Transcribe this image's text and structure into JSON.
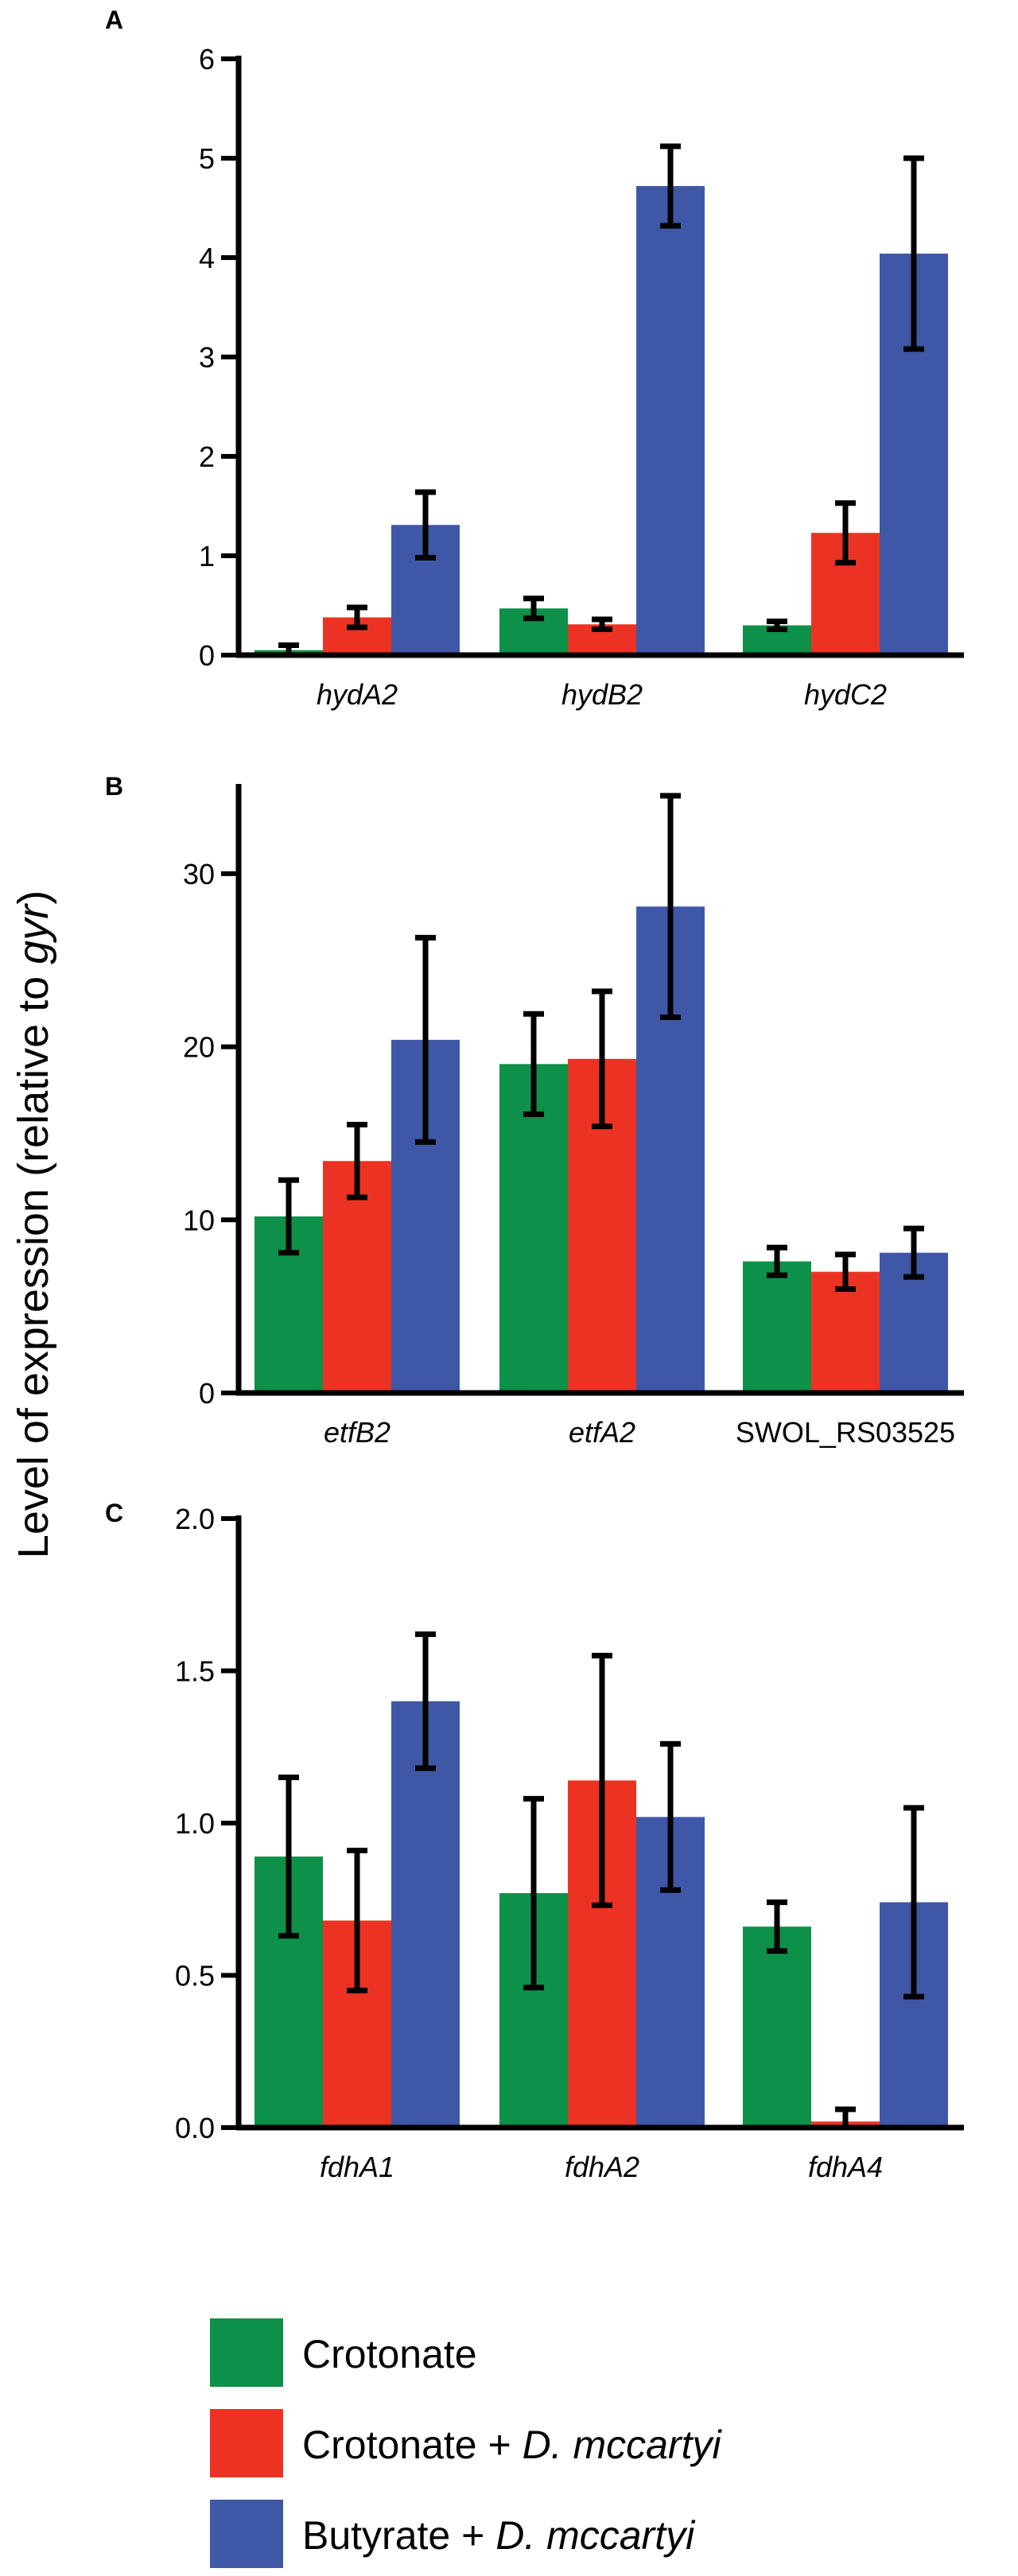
{
  "figure": {
    "ylabel_prefix": "Level of expression (relative to ",
    "ylabel_italic": "gyr",
    "ylabel_suffix": ")"
  },
  "legend": [
    {
      "label_plain": "Crotonate",
      "label_italic": "",
      "color": "#0d9048"
    },
    {
      "label_plain": "Crotonate + ",
      "label_italic": "D. mccartyi",
      "color": "#ec3323"
    },
    {
      "label_plain": "Butyrate + ",
      "label_italic": "D. mccartyi",
      "color": "#3f57a7"
    }
  ],
  "chart_data": [
    {
      "panel": "A",
      "type": "bar",
      "categories": [
        "hydA2",
        "hydB2",
        "hydC2"
      ],
      "categories_italic": [
        true,
        true,
        true
      ],
      "ylim": [
        0,
        6
      ],
      "yticks": [
        0,
        1,
        2,
        3,
        4,
        5,
        6
      ],
      "ytick_labels": [
        "0",
        "1",
        "2",
        "3",
        "4",
        "5",
        "6"
      ],
      "series": [
        {
          "name": "Crotonate",
          "values": [
            0.05,
            0.47,
            0.3
          ],
          "errors": [
            0.05,
            0.1,
            0.04
          ]
        },
        {
          "name": "Crotonate + D. mccartyi",
          "values": [
            0.38,
            0.31,
            1.23
          ],
          "errors": [
            0.1,
            0.05,
            0.3
          ]
        },
        {
          "name": "Butyrate + D. mccartyi",
          "values": [
            1.31,
            4.72,
            4.04
          ],
          "errors": [
            0.33,
            0.4,
            0.96
          ]
        }
      ]
    },
    {
      "panel": "B",
      "type": "bar",
      "categories": [
        "etfB2",
        "etfA2",
        "SWOL_RS03525"
      ],
      "categories_italic": [
        true,
        true,
        false
      ],
      "ylim": [
        0,
        35
      ],
      "yticks": [
        0,
        10,
        20,
        30
      ],
      "ytick_labels": [
        "0",
        "10",
        "20",
        "30"
      ],
      "series": [
        {
          "name": "Crotonate",
          "values": [
            10.2,
            19.0,
            7.6
          ],
          "errors": [
            2.1,
            2.9,
            0.8
          ]
        },
        {
          "name": "Crotonate + D. mccartyi",
          "values": [
            13.4,
            19.3,
            7.0
          ],
          "errors": [
            2.1,
            3.9,
            1.0
          ]
        },
        {
          "name": "Butyrate + D. mccartyi",
          "values": [
            20.4,
            28.1,
            8.1
          ],
          "errors": [
            5.9,
            6.4,
            1.4
          ]
        }
      ]
    },
    {
      "panel": "C",
      "type": "bar",
      "categories": [
        "fdhA1",
        "fdhA2",
        "fdhA4"
      ],
      "categories_italic": [
        true,
        true,
        true
      ],
      "ylim": [
        0,
        2.0
      ],
      "yticks": [
        0,
        0.5,
        1.0,
        1.5,
        2.0
      ],
      "ytick_labels": [
        "0.0",
        "0.5",
        "1.0",
        "1.5",
        "2.0"
      ],
      "series": [
        {
          "name": "Crotonate",
          "values": [
            0.89,
            0.77,
            0.66
          ],
          "errors": [
            0.26,
            0.31,
            0.08
          ]
        },
        {
          "name": "Crotonate + D. mccartyi",
          "values": [
            0.68,
            1.14,
            0.02
          ],
          "errors": [
            0.23,
            0.41,
            0.04
          ]
        },
        {
          "name": "Butyrate + D. mccartyi",
          "values": [
            1.4,
            1.02,
            0.74
          ],
          "errors": [
            0.22,
            0.24,
            0.31
          ]
        }
      ]
    }
  ]
}
